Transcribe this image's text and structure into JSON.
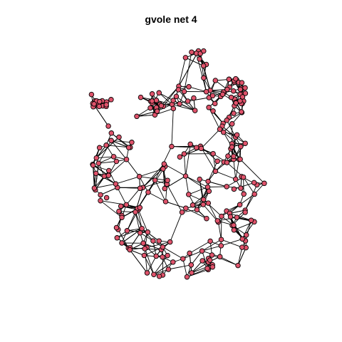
{
  "title": "gvole net 4",
  "colors": {
    "node_fill": "#DF536B",
    "node_stroke": "#000000",
    "edge": "#000000",
    "background": "#ffffff"
  },
  "network": {
    "node_count": 270,
    "seed": 4
  }
}
